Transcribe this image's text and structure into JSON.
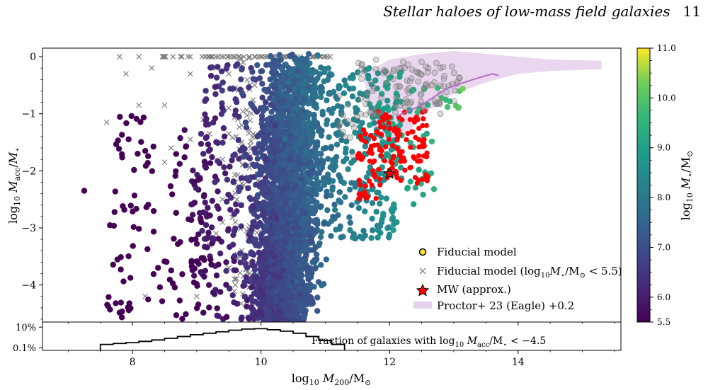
{
  "header": {
    "running_title": "Stellar haloes of low-mass field galaxies",
    "page_number": "11"
  },
  "chart_data": [
    {
      "type": "scatter",
      "title": "",
      "xlabel": "log10 M200/M☉",
      "ylabel": "log10 Macc/M⋆",
      "xlim": [
        6.6,
        15.6
      ],
      "ylim": [
        -4.65,
        0.15
      ],
      "xticks": [
        8,
        10,
        12,
        14
      ],
      "yticks": [
        0,
        -1,
        -2,
        -3,
        -4
      ],
      "ytick_labels": [
        "0",
        "−1",
        "−2",
        "−3",
        "−4"
      ],
      "colorbar": {
        "label": "log10 M⋆/M☉",
        "range": [
          5.5,
          11.0
        ],
        "ticks": [
          "11.0",
          "10.0",
          "9.0",
          "8.0",
          "7.0",
          "6.0",
          "5.5"
        ],
        "colormap": "viridis"
      },
      "legend": {
        "placement": "lower-right",
        "entries": [
          {
            "marker": "circle-yellow",
            "label": "Fiducial model"
          },
          {
            "marker": "cross-grey",
            "label_parts": [
              "Fiducial model (log",
              "10",
              "M",
              "⋆",
              "/M",
              "⊙",
              " < 5.5)"
            ]
          },
          {
            "marker": "star-red",
            "label": "MW (approx.)"
          },
          {
            "marker": "band-lavender",
            "label": "Proctor+ 23 (Eagle) +0.2"
          }
        ]
      },
      "series": [
        {
          "name": "Fiducial model",
          "color_encoding": "log10 M⋆/M☉",
          "density": "main cloud x≈9.8–11.2, y 0 to −4.6; sparse tail x≈7.2–9.5"
        },
        {
          "name": "Fiducial model (log10M⋆/M☉ < 5.5)",
          "color": "#7f7f7f",
          "points": [
            [
              7.8,
              0
            ],
            [
              8.1,
              0
            ],
            [
              8.5,
              0
            ],
            [
              8.9,
              0
            ],
            [
              9.3,
              0
            ],
            [
              9.6,
              0
            ],
            [
              9.9,
              0
            ],
            [
              10.2,
              0
            ],
            [
              10.5,
              0
            ],
            [
              10.8,
              0
            ],
            [
              11.0,
              0
            ],
            [
              7.9,
              -0.3
            ],
            [
              8.3,
              -0.2
            ],
            [
              8.9,
              -0.3
            ],
            [
              9.5,
              -0.3
            ],
            [
              9.3,
              -0.2
            ],
            [
              8.1,
              -0.85
            ],
            [
              8.5,
              -0.85
            ],
            [
              7.6,
              -1.15
            ],
            [
              9.1,
              -1.1
            ],
            [
              9.5,
              -0.9
            ],
            [
              9.7,
              -0.6
            ],
            [
              8.6,
              -1.6
            ],
            [
              8.9,
              -1.45
            ],
            [
              9.2,
              -1.35
            ],
            [
              9.5,
              -1.35
            ],
            [
              8.5,
              -1.85
            ],
            [
              9.4,
              -1.8
            ],
            [
              9.7,
              -1.5
            ],
            [
              9.8,
              -1.9
            ],
            [
              9.8,
              -2.3
            ],
            [
              9.6,
              -2.2
            ],
            [
              9.4,
              -2.5
            ],
            [
              9.7,
              -2.6
            ],
            [
              9.6,
              -2.9
            ],
            [
              9.3,
              -3.1
            ],
            [
              9.7,
              -3.4
            ],
            [
              9.5,
              -3.7
            ],
            [
              9.6,
              -4.0
            ],
            [
              9.0,
              -4.2
            ],
            [
              9.8,
              -3.2
            ],
            [
              9.8,
              -3.9
            ],
            [
              8.2,
              -4.2
            ],
            [
              9.2,
              -3.3
            ],
            [
              9.4,
              -2.9
            ],
            [
              9.7,
              -1.2
            ],
            [
              9.9,
              -0.5
            ]
          ]
        },
        {
          "name": "MW (approx.)",
          "color": "#ff0000",
          "points": [
            [
              12.0,
              -2.05
            ]
          ]
        },
        {
          "name": "Proctor+ 23 (Eagle) +0.2",
          "color": "#e6d0ec",
          "median_line": [
            [
              12.1,
              -1.05
            ],
            [
              12.5,
              -0.85
            ],
            [
              12.9,
              -0.55
            ],
            [
              13.3,
              -0.4
            ],
            [
              13.6,
              -0.3
            ],
            [
              13.7,
              -0.33
            ]
          ],
          "band_upper": [
            [
              11.6,
              -0.3
            ],
            [
              12.0,
              -0.05
            ],
            [
              12.5,
              0.05
            ],
            [
              13.0,
              0.1
            ],
            [
              13.5,
              0.05
            ],
            [
              14.0,
              0.0
            ],
            [
              14.5,
              -0.05
            ],
            [
              15.3,
              -0.07
            ]
          ],
          "band_lower": [
            [
              15.3,
              -0.22
            ],
            [
              14.5,
              -0.25
            ],
            [
              14.0,
              -0.3
            ],
            [
              13.5,
              -0.45
            ],
            [
              13.0,
              -0.65
            ],
            [
              12.6,
              -0.95
            ],
            [
              12.3,
              -1.3
            ],
            [
              12.0,
              -1.55
            ],
            [
              11.7,
              -1.2
            ]
          ]
        }
      ]
    },
    {
      "type": "histogram",
      "title": "",
      "annotation_parts": [
        "Fraction of galaxies with log",
        "10",
        " M",
        "acc",
        "/M",
        "⋆",
        " < −4.5"
      ],
      "ytick_labels": [
        "10%",
        "0.1%"
      ],
      "xticks": [
        8,
        10,
        12,
        14
      ],
      "x": [
        7.6,
        7.8,
        8.0,
        8.2,
        8.4,
        8.6,
        8.8,
        9.0,
        9.2,
        9.4,
        9.6,
        9.8,
        10.0,
        10.2,
        10.4,
        10.6,
        10.8,
        11.0,
        11.2
      ],
      "values_percent": [
        0.2,
        0.25,
        0.3,
        0.4,
        0.55,
        0.8,
        1.2,
        1.8,
        2.5,
        3.5,
        5,
        6.5,
        7,
        5.5,
        4,
        2.5,
        1.2,
        0.5,
        0.2
      ]
    }
  ]
}
